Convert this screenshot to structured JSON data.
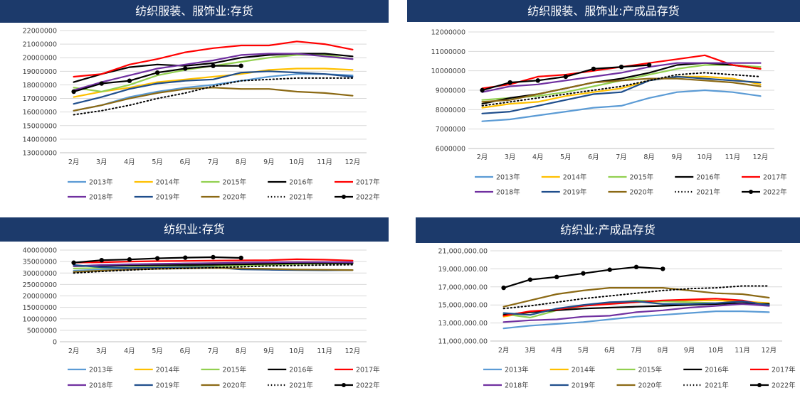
{
  "months": [
    "2月",
    "3月",
    "4月",
    "5月",
    "6月",
    "7月",
    "8月",
    "9月",
    "10月",
    "11月",
    "12月"
  ],
  "series_meta": [
    {
      "name": "2013年",
      "color": "#5b9bd5",
      "style": "solid"
    },
    {
      "name": "2014年",
      "color": "#ffc000",
      "style": "solid"
    },
    {
      "name": "2015年",
      "color": "#92d050",
      "style": "solid"
    },
    {
      "name": "2016年",
      "color": "#000000",
      "style": "solid"
    },
    {
      "name": "2017年",
      "color": "#ff0000",
      "style": "solid"
    },
    {
      "name": "2018年",
      "color": "#7030a0",
      "style": "solid"
    },
    {
      "name": "2019年",
      "color": "#1f4e8c",
      "style": "solid"
    },
    {
      "name": "2020年",
      "color": "#8b6914",
      "style": "solid"
    },
    {
      "name": "2021年",
      "color": "#000000",
      "style": "dotted"
    },
    {
      "name": "2022年",
      "color": "#000000",
      "style": "marker"
    }
  ],
  "chart_data": [
    {
      "type": "line",
      "title": "纺织服装、服饰业:存货",
      "categories": [
        "2月",
        "3月",
        "4月",
        "5月",
        "6月",
        "7月",
        "8月",
        "9月",
        "10月",
        "11月",
        "12月"
      ],
      "ylim": [
        13000000,
        22000000
      ],
      "yticks": [
        13000000,
        14000000,
        15000000,
        16000000,
        17000000,
        18000000,
        19000000,
        20000000,
        21000000,
        22000000
      ],
      "ytick_labels": [
        "13000000",
        "14000000",
        "15000000",
        "16000000",
        "17000000",
        "18000000",
        "19000000",
        "20000000",
        "21000000",
        "22000000"
      ],
      "series": [
        {
          "name": "2013年",
          "values": [
            16100000,
            16500000,
            17100000,
            17500000,
            17800000,
            18000000,
            18300000,
            18600000,
            18800000,
            18800000,
            18700000
          ]
        },
        {
          "name": "2014年",
          "values": [
            17100000,
            17500000,
            17800000,
            18200000,
            18400000,
            18600000,
            18800000,
            19100000,
            19200000,
            19200000,
            19100000
          ]
        },
        {
          "name": "2015年",
          "values": [
            17800000,
            17500000,
            18000000,
            18700000,
            19100000,
            19400000,
            19700000,
            20000000,
            20200000,
            20200000,
            19900000
          ]
        },
        {
          "name": "2016年",
          "values": [
            18200000,
            18800000,
            19300000,
            19500000,
            19400000,
            19600000,
            20000000,
            20200000,
            20300000,
            20300000,
            20100000
          ]
        },
        {
          "name": "2017年",
          "values": [
            18600000,
            18800000,
            19500000,
            19900000,
            20400000,
            20700000,
            20900000,
            20900000,
            21200000,
            21000000,
            20600000
          ]
        },
        {
          "name": "2018年",
          "values": [
            17600000,
            18200000,
            18700000,
            19200000,
            19500000,
            19800000,
            20200000,
            20300000,
            20300000,
            20100000,
            19900000
          ]
        },
        {
          "name": "2019年",
          "values": [
            16600000,
            17100000,
            17700000,
            18100000,
            18300000,
            18400000,
            18900000,
            19000000,
            18900000,
            18800000,
            18600000
          ]
        },
        {
          "name": "2020年",
          "values": [
            16100000,
            16500000,
            17000000,
            17400000,
            17700000,
            17800000,
            17700000,
            17700000,
            17500000,
            17400000,
            17200000
          ]
        },
        {
          "name": "2021年",
          "values": [
            15800000,
            16100000,
            16500000,
            17000000,
            17400000,
            17900000,
            18300000,
            18400000,
            18500000,
            18500000,
            18500000
          ]
        },
        {
          "name": "2022年",
          "values": [
            17500000,
            18100000,
            18300000,
            18900000,
            19200000,
            19400000,
            19400000,
            null,
            null,
            null,
            null
          ]
        }
      ]
    },
    {
      "type": "line",
      "title": "纺织服装、服饰业:产成品存货",
      "categories": [
        "2月",
        "3月",
        "4月",
        "5月",
        "6月",
        "7月",
        "8月",
        "9月",
        "10月",
        "11月",
        "12月"
      ],
      "ylim": [
        6000000,
        12000000
      ],
      "yticks": [
        6000000,
        7000000,
        8000000,
        9000000,
        10000000,
        11000000,
        12000000
      ],
      "ytick_labels": [
        "6000000",
        "7000000",
        "8000000",
        "9000000",
        "10000000",
        "11000000",
        "12000000"
      ],
      "series": [
        {
          "name": "2013年",
          "values": [
            7400000,
            7500000,
            7700000,
            7900000,
            8100000,
            8200000,
            8600000,
            8900000,
            9000000,
            8900000,
            8700000
          ]
        },
        {
          "name": "2014年",
          "values": [
            8100000,
            8300000,
            8400000,
            8700000,
            8900000,
            9100000,
            9500000,
            9700000,
            9700000,
            9600000,
            9300000
          ]
        },
        {
          "name": "2015年",
          "values": [
            8500000,
            8600000,
            8700000,
            8900000,
            9200000,
            9500000,
            9800000,
            10100000,
            10300000,
            10300000,
            10200000
          ]
        },
        {
          "name": "2016年",
          "values": [
            8300000,
            8600000,
            8800000,
            9100000,
            9400000,
            9600000,
            9900000,
            10300000,
            10400000,
            10300000,
            10100000
          ]
        },
        {
          "name": "2017年",
          "values": [
            9100000,
            9300000,
            9700000,
            9800000,
            10000000,
            10200000,
            10400000,
            10600000,
            10800000,
            10300000,
            10100000
          ]
        },
        {
          "name": "2018年",
          "values": [
            8900000,
            9200000,
            9300000,
            9500000,
            9700000,
            9900000,
            10200000,
            10400000,
            10400000,
            10400000,
            10400000
          ]
        },
        {
          "name": "2019年",
          "values": [
            7800000,
            7900000,
            8200000,
            8500000,
            8800000,
            8900000,
            9500000,
            9700000,
            9600000,
            9500000,
            9400000
          ]
        },
        {
          "name": "2020年",
          "values": [
            8400000,
            8500000,
            8800000,
            9100000,
            9400000,
            9500000,
            9600000,
            9600000,
            9500000,
            9400000,
            9200000
          ]
        },
        {
          "name": "2021年",
          "values": [
            8200000,
            8400000,
            8600000,
            8800000,
            9000000,
            9200000,
            9500000,
            9800000,
            9900000,
            9800000,
            9700000
          ]
        },
        {
          "name": "2022年",
          "values": [
            9000000,
            9400000,
            9500000,
            9700000,
            10100000,
            10200000,
            10300000,
            null,
            null,
            null,
            null
          ]
        }
      ]
    },
    {
      "type": "line",
      "title": "纺织业:存货",
      "categories": [
        "2月",
        "3月",
        "4月",
        "5月",
        "6月",
        "7月",
        "8月",
        "9月",
        "10月",
        "11月",
        "12月"
      ],
      "ylim": [
        0,
        40000000
      ],
      "yticks": [
        0,
        5000000,
        10000000,
        15000000,
        20000000,
        25000000,
        30000000,
        35000000,
        40000000
      ],
      "ytick_labels": [
        "0",
        "5000000",
        "10000000",
        "15000000",
        "20000000",
        "25000000",
        "30000000",
        "35000000",
        "40000000"
      ],
      "series": [
        {
          "name": "2013年",
          "values": [
            31000000,
            31500000,
            32000000,
            32300000,
            32600000,
            33000000,
            33400000,
            33700000,
            34000000,
            34200000,
            34100000
          ]
        },
        {
          "name": "2014年",
          "values": [
            33000000,
            33200000,
            33600000,
            33900000,
            34100000,
            34300000,
            34500000,
            34600000,
            34800000,
            34700000,
            34600000
          ]
        },
        {
          "name": "2015年",
          "values": [
            32000000,
            32200000,
            32400000,
            32600000,
            32800000,
            33000000,
            33300000,
            33600000,
            33900000,
            34100000,
            34200000
          ]
        },
        {
          "name": "2016年",
          "values": [
            33000000,
            33100000,
            33300000,
            33400000,
            33500000,
            33600000,
            33800000,
            34000000,
            34200000,
            34300000,
            34300000
          ]
        },
        {
          "name": "2017年",
          "values": [
            34500000,
            34700000,
            35000000,
            35200000,
            35300000,
            35400000,
            35500000,
            35600000,
            36000000,
            35800000,
            35400000
          ]
        },
        {
          "name": "2018年",
          "values": [
            33000000,
            33500000,
            33800000,
            34000000,
            34200000,
            34300000,
            34500000,
            34700000,
            34800000,
            34800000,
            34700000
          ]
        },
        {
          "name": "2019年",
          "values": [
            33500000,
            32500000,
            32200000,
            32300000,
            32500000,
            32500000,
            31600000,
            31400000,
            31300000,
            31200000,
            31300000
          ]
        },
        {
          "name": "2020年",
          "values": [
            30500000,
            31000000,
            31500000,
            31800000,
            32000000,
            32200000,
            32000000,
            31800000,
            31500000,
            31400000,
            31300000
          ]
        },
        {
          "name": "2021年",
          "values": [
            30000000,
            30700000,
            31300000,
            31800000,
            32000000,
            32300000,
            32700000,
            33100000,
            33300000,
            33500000,
            33600000
          ]
        },
        {
          "name": "2022年",
          "values": [
            34500000,
            35600000,
            35900000,
            36400000,
            36700000,
            36900000,
            36600000,
            null,
            null,
            null,
            null
          ]
        }
      ]
    },
    {
      "type": "line",
      "title": "纺织业:产成品存货",
      "categories": [
        "2月",
        "3月",
        "4月",
        "5月",
        "6月",
        "7月",
        "8月",
        "9月",
        "10月",
        "11月",
        "12月"
      ],
      "ylim": [
        11000000,
        21000000
      ],
      "yticks": [
        11000000,
        13000000,
        15000000,
        17000000,
        19000000,
        21000000
      ],
      "ytick_labels": [
        "11,000,000.00",
        "13,000,000.00",
        "15,000,000.00",
        "17,000,000.00",
        "19,000,000.00",
        "21,000,000.00"
      ],
      "series": [
        {
          "name": "2013年",
          "values": [
            12400000,
            12700000,
            12900000,
            13100000,
            13400000,
            13700000,
            13900000,
            14100000,
            14300000,
            14300000,
            14200000
          ]
        },
        {
          "name": "2014年",
          "values": [
            13700000,
            14200000,
            14500000,
            14900000,
            15200000,
            15300000,
            15400000,
            15500000,
            15500000,
            15400000,
            15200000
          ]
        },
        {
          "name": "2015年",
          "values": [
            14000000,
            13600000,
            14400000,
            14900000,
            15200000,
            15500000,
            15400000,
            15300000,
            15200000,
            15100000,
            15000000
          ]
        },
        {
          "name": "2016年",
          "values": [
            13900000,
            14200000,
            14400000,
            14600000,
            14700000,
            14800000,
            14900000,
            15000000,
            15100000,
            15200000,
            15100000
          ]
        },
        {
          "name": "2017年",
          "values": [
            13800000,
            14300000,
            14500000,
            14900000,
            15100000,
            15300000,
            15500000,
            15600000,
            15700000,
            15500000,
            14900000
          ]
        },
        {
          "name": "2018年",
          "values": [
            13100000,
            13300000,
            13400000,
            13700000,
            13800000,
            14200000,
            14400000,
            14700000,
            14900000,
            15100000,
            14900000
          ]
        },
        {
          "name": "2019年",
          "values": [
            14100000,
            13900000,
            14600000,
            15000000,
            15300000,
            15400000,
            15100000,
            15100000,
            15200000,
            15400000,
            15000000
          ]
        },
        {
          "name": "2020年",
          "values": [
            14800000,
            15500000,
            16200000,
            16600000,
            16900000,
            16900000,
            16900000,
            16600000,
            16300000,
            16200000,
            15800000
          ]
        },
        {
          "name": "2021年",
          "values": [
            14600000,
            14900000,
            15300000,
            15700000,
            16000000,
            16300000,
            16600000,
            16800000,
            16900000,
            17100000,
            17100000
          ]
        },
        {
          "name": "2022年",
          "values": [
            16900000,
            17800000,
            18100000,
            18500000,
            18900000,
            19200000,
            19000000,
            null,
            null,
            null,
            null
          ]
        }
      ]
    }
  ]
}
